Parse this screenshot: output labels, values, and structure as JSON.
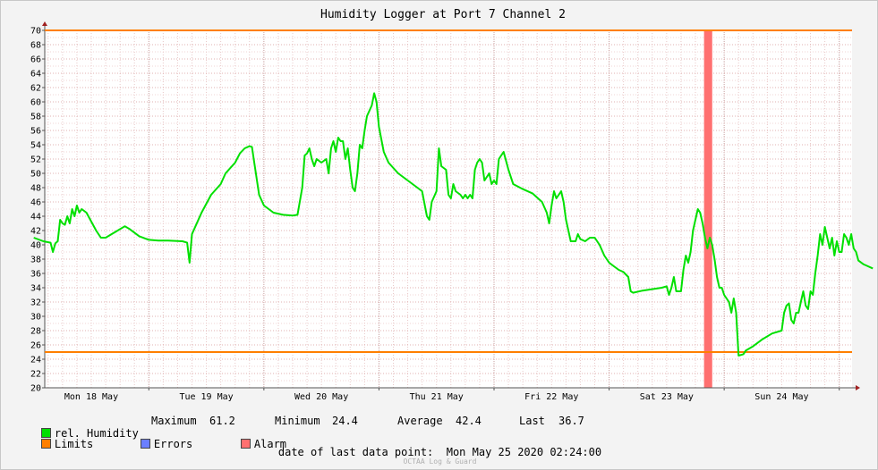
{
  "chart_data": {
    "type": "line",
    "title": "Humidity Logger at Port 7 Channel 2",
    "ylim": [
      20,
      70
    ],
    "y_ticks": [
      20,
      22,
      24,
      26,
      28,
      30,
      32,
      34,
      36,
      38,
      40,
      42,
      44,
      46,
      48,
      50,
      52,
      54,
      56,
      58,
      60,
      62,
      64,
      66,
      68,
      70
    ],
    "xlim_hours": [
      0,
      168
    ],
    "x_ticks": [
      "Mon 18 May",
      "Tue 19 May",
      "Wed 20 May",
      "Thu 21 May",
      "Fri 22 May",
      "Sat 23 May",
      "Sun 24 May"
    ],
    "grid": true,
    "limits": {
      "upper": 70,
      "lower": 25
    },
    "alarm_period_hours": [
      139.8,
      141.5
    ],
    "series": [
      {
        "name": "rel. Humidity",
        "color": "#00e000",
        "points": [
          [
            0,
            41.0
          ],
          [
            2,
            40.5
          ],
          [
            3.5,
            40.3
          ],
          [
            4,
            39.0
          ],
          [
            4.5,
            40.2
          ],
          [
            5,
            40.5
          ],
          [
            5.5,
            43.5
          ],
          [
            6,
            43.0
          ],
          [
            6.5,
            42.8
          ],
          [
            7,
            44.0
          ],
          [
            7.5,
            43.0
          ],
          [
            8,
            45.0
          ],
          [
            8.5,
            44.0
          ],
          [
            9,
            45.5
          ],
          [
            9.5,
            44.5
          ],
          [
            10,
            45.0
          ],
          [
            11,
            44.5
          ],
          [
            13,
            42.0
          ],
          [
            14,
            41.0
          ],
          [
            15,
            41.0
          ],
          [
            17,
            41.8
          ],
          [
            19,
            42.6
          ],
          [
            20,
            42.2
          ],
          [
            22,
            41.2
          ],
          [
            24,
            40.7
          ],
          [
            26,
            40.6
          ],
          [
            28,
            40.6
          ],
          [
            31,
            40.5
          ],
          [
            32,
            40.3
          ],
          [
            32.5,
            37.5
          ],
          [
            33,
            41.5
          ],
          [
            35,
            44.5
          ],
          [
            37,
            47.0
          ],
          [
            39,
            48.5
          ],
          [
            40,
            50.0
          ],
          [
            42,
            51.5
          ],
          [
            43,
            52.8
          ],
          [
            44,
            53.5
          ],
          [
            45,
            53.8
          ],
          [
            45.5,
            53.7
          ],
          [
            46,
            51.5
          ],
          [
            47,
            47.0
          ],
          [
            48,
            45.5
          ],
          [
            50,
            44.5
          ],
          [
            52,
            44.2
          ],
          [
            54,
            44.1
          ],
          [
            55,
            44.2
          ],
          [
            56,
            48.0
          ],
          [
            56.5,
            52.5
          ],
          [
            57,
            52.8
          ],
          [
            57.5,
            53.5
          ],
          [
            58,
            52.0
          ],
          [
            58.5,
            51.0
          ],
          [
            59,
            52.0
          ],
          [
            60,
            51.5
          ],
          [
            61,
            52.0
          ],
          [
            61.5,
            50.0
          ],
          [
            62,
            53.5
          ],
          [
            62.5,
            54.5
          ],
          [
            63,
            53.0
          ],
          [
            63.5,
            55.0
          ],
          [
            64,
            54.5
          ],
          [
            64.5,
            54.5
          ],
          [
            65,
            52.0
          ],
          [
            65.5,
            53.5
          ],
          [
            66,
            50.5
          ],
          [
            66.5,
            48.0
          ],
          [
            67,
            47.5
          ],
          [
            67.5,
            50.0
          ],
          [
            68,
            54.0
          ],
          [
            68.5,
            53.5
          ],
          [
            69,
            56.0
          ],
          [
            69.5,
            58.0
          ],
          [
            70.5,
            59.5
          ],
          [
            71,
            61.2
          ],
          [
            71.5,
            60.0
          ],
          [
            72,
            56.5
          ],
          [
            73,
            53.0
          ],
          [
            74,
            51.5
          ],
          [
            76,
            50.0
          ],
          [
            78,
            49.0
          ],
          [
            80,
            48.0
          ],
          [
            81,
            47.5
          ],
          [
            82,
            44.0
          ],
          [
            82.5,
            43.5
          ],
          [
            83,
            46.0
          ],
          [
            84,
            47.5
          ],
          [
            84.5,
            53.5
          ],
          [
            85,
            51.0
          ],
          [
            86,
            50.5
          ],
          [
            86.5,
            47.0
          ],
          [
            87,
            46.5
          ],
          [
            87.5,
            48.5
          ],
          [
            88,
            47.5
          ],
          [
            89,
            47.0
          ],
          [
            89.5,
            46.5
          ],
          [
            90,
            47.0
          ],
          [
            90.5,
            46.5
          ],
          [
            91,
            47.0
          ],
          [
            91.5,
            46.5
          ],
          [
            92,
            50.5
          ],
          [
            92.5,
            51.5
          ],
          [
            93,
            52.0
          ],
          [
            93.5,
            51.5
          ],
          [
            94,
            49.0
          ],
          [
            95,
            50.0
          ],
          [
            95.5,
            48.5
          ],
          [
            96,
            49.0
          ],
          [
            96.5,
            48.5
          ],
          [
            97,
            52.0
          ],
          [
            97.5,
            52.5
          ],
          [
            98,
            53.0
          ],
          [
            99,
            50.5
          ],
          [
            100,
            48.5
          ],
          [
            102,
            47.8
          ],
          [
            104,
            47.2
          ],
          [
            106,
            46.0
          ],
          [
            107,
            44.5
          ],
          [
            107.5,
            43.0
          ],
          [
            108,
            45.5
          ],
          [
            108.5,
            47.5
          ],
          [
            109,
            46.5
          ],
          [
            110,
            47.5
          ],
          [
            110.5,
            46.0
          ],
          [
            111,
            43.5
          ],
          [
            112,
            40.5
          ],
          [
            113,
            40.5
          ],
          [
            113.5,
            41.5
          ],
          [
            114,
            40.8
          ],
          [
            115,
            40.5
          ],
          [
            116,
            41.0
          ],
          [
            117,
            41.0
          ],
          [
            118,
            40.0
          ],
          [
            119,
            38.5
          ],
          [
            120,
            37.5
          ],
          [
            121,
            37.0
          ],
          [
            122,
            36.5
          ],
          [
            123,
            36.2
          ],
          [
            124,
            35.5
          ],
          [
            124.5,
            33.5
          ],
          [
            125,
            33.3
          ],
          [
            127,
            33.6
          ],
          [
            129,
            33.8
          ],
          [
            131,
            34.0
          ],
          [
            132,
            34.2
          ],
          [
            132.5,
            33.0
          ],
          [
            133,
            34.0
          ],
          [
            133.5,
            35.5
          ],
          [
            134,
            33.5
          ],
          [
            135,
            33.5
          ],
          [
            135.5,
            36.5
          ],
          [
            136,
            38.5
          ],
          [
            136.5,
            37.5
          ],
          [
            137,
            39.0
          ],
          [
            137.5,
            42.0
          ],
          [
            138,
            43.5
          ],
          [
            138.5,
            45.0
          ],
          [
            139,
            44.5
          ],
          [
            139.5,
            43.0
          ],
          [
            140,
            41.0
          ],
          [
            140.5,
            39.5
          ],
          [
            141,
            41.0
          ],
          [
            141.5,
            40.0
          ],
          [
            142,
            38.0
          ],
          [
            142.5,
            35.5
          ],
          [
            143,
            34.0
          ],
          [
            143.5,
            34.0
          ],
          [
            144,
            33.0
          ],
          [
            144.5,
            32.5
          ],
          [
            145,
            32.0
          ],
          [
            145.5,
            30.5
          ],
          [
            146,
            32.5
          ],
          [
            146.5,
            30.5
          ],
          [
            147,
            24.5
          ],
          [
            148,
            24.7
          ],
          [
            148.5,
            25.2
          ],
          [
            150,
            25.8
          ],
          [
            152,
            26.8
          ],
          [
            154,
            27.6
          ],
          [
            156,
            28.0
          ],
          [
            156.5,
            30.5
          ],
          [
            157,
            31.5
          ],
          [
            157.5,
            31.8
          ],
          [
            158,
            29.5
          ],
          [
            158.5,
            29.0
          ],
          [
            159,
            30.5
          ],
          [
            159.5,
            30.5
          ],
          [
            160,
            32.0
          ],
          [
            160.5,
            33.5
          ],
          [
            161,
            31.5
          ],
          [
            161.5,
            31.0
          ],
          [
            162,
            33.5
          ],
          [
            162.5,
            33.0
          ],
          [
            163,
            36.0
          ],
          [
            163.5,
            38.5
          ],
          [
            164,
            41.5
          ],
          [
            164.5,
            40.0
          ],
          [
            165,
            42.5
          ],
          [
            165.5,
            41.0
          ],
          [
            166,
            39.5
          ],
          [
            166.5,
            41.0
          ],
          [
            167,
            38.5
          ],
          [
            167.5,
            40.5
          ],
          [
            168,
            39.0
          ],
          [
            168.5,
            39.0
          ],
          [
            169,
            41.5
          ],
          [
            169.5,
            41.0
          ],
          [
            170,
            40.0
          ],
          [
            170.5,
            41.5
          ],
          [
            171,
            39.5
          ],
          [
            171.5,
            39.0
          ],
          [
            172,
            37.8
          ],
          [
            173,
            37.3
          ],
          [
            174,
            37.0
          ],
          [
            175,
            36.7
          ]
        ]
      },
      {
        "name": "Limits",
        "color": "#ff7f00"
      },
      {
        "name": "Errors",
        "color": "#6b7fff"
      },
      {
        "name": "Alarm",
        "color": "#ff7070"
      }
    ]
  },
  "stats": {
    "legend_label": "rel. Humidity",
    "maximum_label": "Maximum",
    "maximum_value": "61.2",
    "minimum_label": "Minimum",
    "minimum_value": "24.4",
    "average_label": "Average",
    "average_value": "42.4",
    "last_label": "Last",
    "last_value": "36.7"
  },
  "legend2": {
    "limits": "Limits",
    "errors": "Errors",
    "alarm": "Alarm"
  },
  "footer": {
    "label": "date of last data point:",
    "value": "Mon May 25 2020 02:24:00",
    "brand": "OCTAA Log & Guard"
  }
}
